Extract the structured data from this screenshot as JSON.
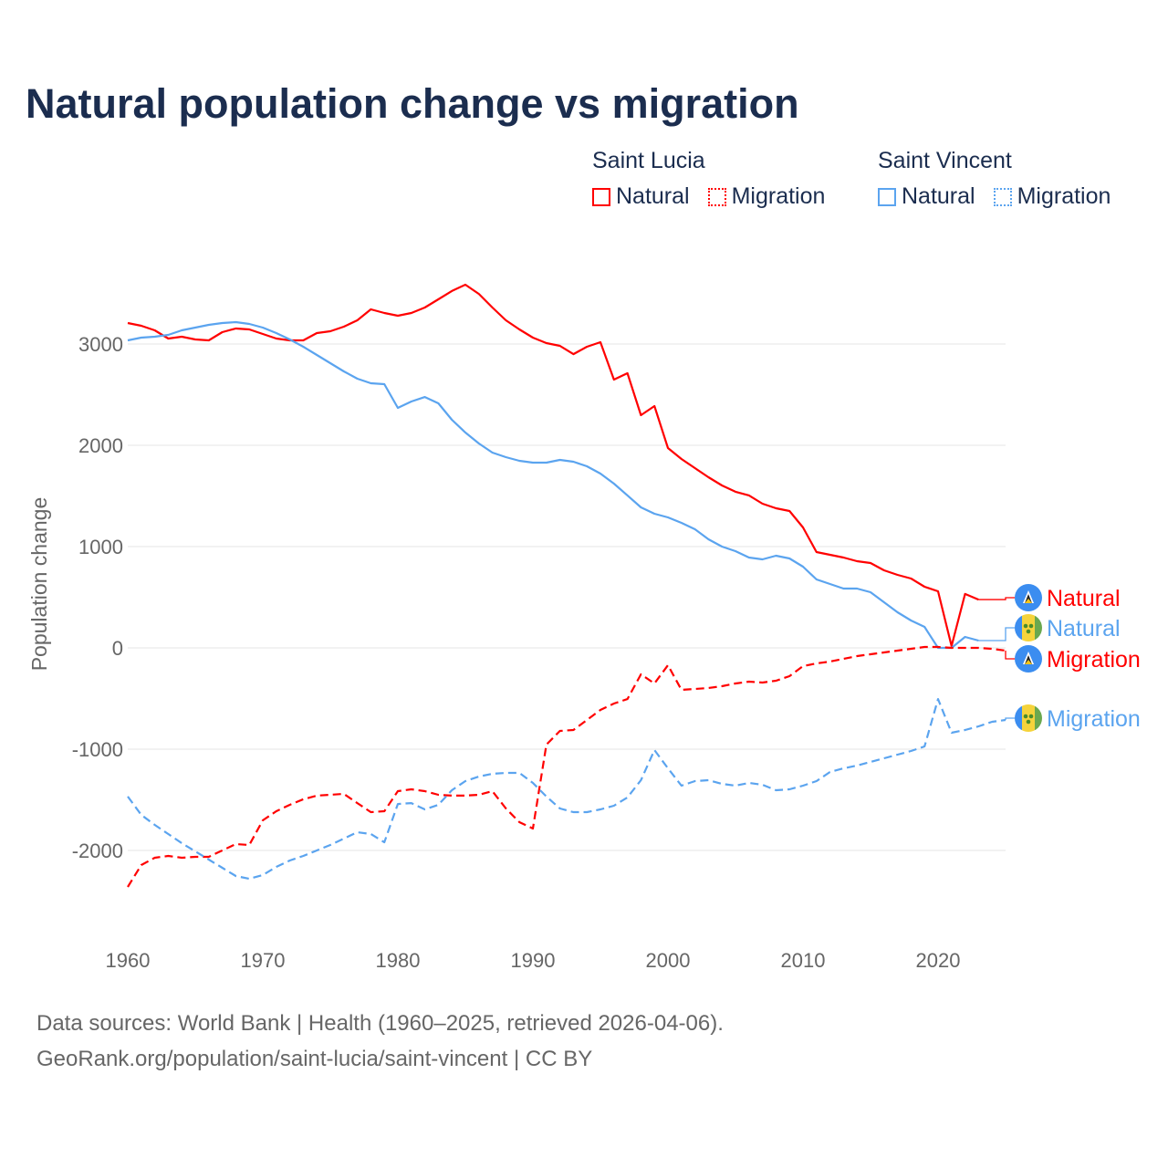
{
  "title": "Natural population change vs migration",
  "legend": {
    "groups": [
      {
        "name": "Saint Lucia",
        "color": "#ff0000",
        "items": [
          {
            "label": "Natural",
            "style": "solid"
          },
          {
            "label": "Migration",
            "style": "dotted"
          }
        ]
      },
      {
        "name": "Saint Vincent",
        "color": "#5ba4ef",
        "items": [
          {
            "label": "Natural",
            "style": "solid"
          },
          {
            "label": "Migration",
            "style": "dotted"
          }
        ]
      }
    ]
  },
  "footer": {
    "line1": "Data sources: World Bank | Health (1960–2025, retrieved 2026-04-06).",
    "line2": "GeoRank.org/population/saint-lucia/saint-vincent | CC BY"
  },
  "chart_data": {
    "type": "line",
    "title": "Natural population change vs migration",
    "xlabel": "",
    "ylabel": "Population change",
    "xlim": [
      1960,
      2025
    ],
    "ylim": [
      -2500,
      3700
    ],
    "xticks": [
      1960,
      1970,
      1980,
      1990,
      2000,
      2010,
      2020
    ],
    "yticks": [
      -2000,
      -1000,
      0,
      1000,
      2000,
      3000
    ],
    "grid": true,
    "series": [
      {
        "name": "Saint Lucia Natural",
        "end_label": "Natural",
        "country": "Saint Lucia",
        "color": "#ff0000",
        "dash": false,
        "start": 1960,
        "values": [
          3207,
          3180,
          3135,
          3054,
          3072,
          3045,
          3036,
          3117,
          3153,
          3144,
          3099,
          3054,
          3036,
          3036,
          3108,
          3126,
          3171,
          3234,
          3342,
          3306,
          3279,
          3306,
          3360,
          3441,
          3523,
          3586,
          3495,
          3360,
          3234,
          3144,
          3063,
          3009,
          2982,
          2900,
          2973,
          3018,
          2649,
          2712,
          2297,
          2387,
          1973,
          1865,
          1775,
          1685,
          1604,
          1541,
          1505,
          1423,
          1378,
          1351,
          1189,
          946,
          919,
          892,
          856,
          838,
          766,
          721,
          685,
          604,
          559,
          18,
          532,
          477
        ]
      },
      {
        "name": "Saint Vincent Natural",
        "end_label": "Natural",
        "country": "Saint Vincent",
        "color": "#5ba4ef",
        "dash": false,
        "start": 1960,
        "values": [
          3036,
          3063,
          3072,
          3090,
          3135,
          3162,
          3189,
          3207,
          3216,
          3198,
          3162,
          3108,
          3045,
          2973,
          2892,
          2811,
          2730,
          2658,
          2613,
          2604,
          2369,
          2432,
          2477,
          2414,
          2252,
          2126,
          2018,
          1928,
          1883,
          1847,
          1829,
          1829,
          1856,
          1838,
          1793,
          1721,
          1622,
          1505,
          1387,
          1324,
          1288,
          1234,
          1171,
          1072,
          1000,
          955,
          892,
          874,
          910,
          883,
          802,
          676,
          631,
          586,
          586,
          550,
          450,
          351,
          270,
          207,
          0,
          0,
          108,
          72
        ]
      },
      {
        "name": "Saint Lucia Migration",
        "end_label": "Migration",
        "country": "Saint Lucia",
        "color": "#ff0000",
        "dash": true,
        "start": 1960,
        "values": [
          -2360,
          -2144,
          -2072,
          -2054,
          -2072,
          -2063,
          -2063,
          -2000,
          -1937,
          -1946,
          -1703,
          -1613,
          -1550,
          -1495,
          -1459,
          -1450,
          -1441,
          -1532,
          -1622,
          -1613,
          -1414,
          -1396,
          -1414,
          -1450,
          -1459,
          -1459,
          -1450,
          -1414,
          -1586,
          -1721,
          -1784,
          -955,
          -820,
          -811,
          -712,
          -613,
          -550,
          -505,
          -261,
          -351,
          -171,
          -414,
          -405,
          -396,
          -378,
          -351,
          -333,
          -342,
          -324,
          -279,
          -180,
          -153,
          -135,
          -108,
          -81,
          -63,
          -45,
          -27,
          -9,
          9,
          9,
          0,
          0,
          0,
          -9,
          -27
        ]
      },
      {
        "name": "Saint Vincent Migration",
        "end_label": "Migration",
        "country": "Saint Vincent",
        "color": "#5ba4ef",
        "dash": true,
        "start": 1960,
        "values": [
          -1468,
          -1649,
          -1748,
          -1838,
          -1928,
          -2009,
          -2090,
          -2171,
          -2252,
          -2279,
          -2243,
          -2162,
          -2099,
          -2054,
          -2000,
          -1946,
          -1883,
          -1820,
          -1838,
          -1919,
          -1541,
          -1532,
          -1595,
          -1550,
          -1405,
          -1315,
          -1270,
          -1243,
          -1234,
          -1234,
          -1333,
          -1468,
          -1586,
          -1622,
          -1622,
          -1595,
          -1559,
          -1477,
          -1306,
          -1009,
          -1189,
          -1360,
          -1315,
          -1306,
          -1342,
          -1360,
          -1333,
          -1351,
          -1405,
          -1396,
          -1360,
          -1315,
          -1225,
          -1189,
          -1162,
          -1126,
          -1090,
          -1054,
          -1018,
          -973,
          -505,
          -838,
          -811,
          -775,
          -730,
          -712
        ]
      }
    ]
  }
}
